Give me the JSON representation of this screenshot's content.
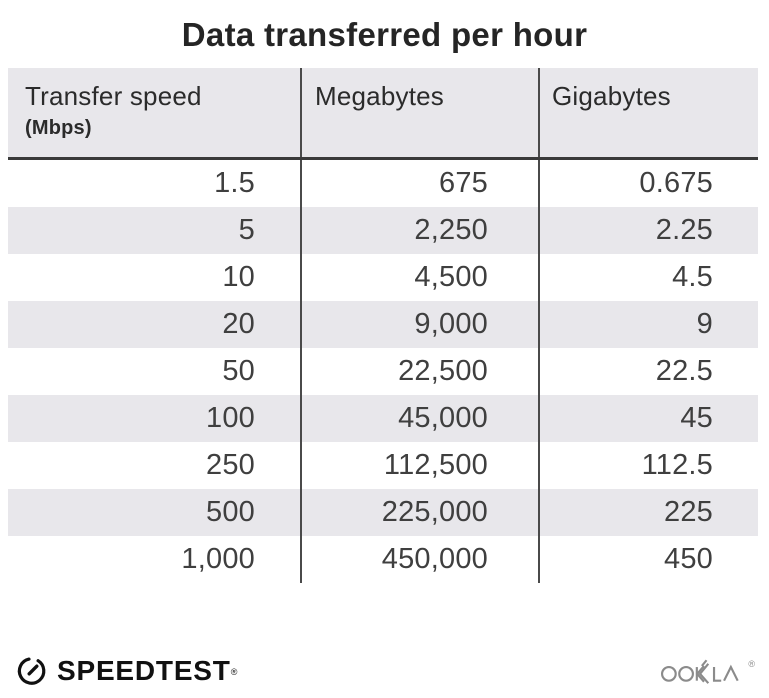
{
  "title": "Data transferred per hour",
  "table": {
    "columns": [
      {
        "label": "Transfer speed",
        "sublabel": "(Mbps)"
      },
      {
        "label": "Megabytes"
      },
      {
        "label": "Gigabytes"
      }
    ],
    "rows": [
      [
        "1.5",
        "675",
        "0.675"
      ],
      [
        "5",
        "2,250",
        "2.25"
      ],
      [
        "10",
        "4,500",
        "4.5"
      ],
      [
        "20",
        "9,000",
        "9"
      ],
      [
        "50",
        "22,500",
        "22.5"
      ],
      [
        "100",
        "45,000",
        "45"
      ],
      [
        "250",
        "112,500",
        "112.5"
      ],
      [
        "500",
        "225,000",
        "225"
      ],
      [
        "1,000",
        "450,000",
        "450"
      ]
    ]
  },
  "chart_data": {
    "type": "table",
    "title": "Data transferred per hour",
    "columns": [
      "Transfer speed (Mbps)",
      "Megabytes",
      "Gigabytes"
    ],
    "rows": [
      [
        1.5,
        675,
        0.675
      ],
      [
        5,
        2250,
        2.25
      ],
      [
        10,
        4500,
        4.5
      ],
      [
        20,
        9000,
        9
      ],
      [
        50,
        22500,
        22.5
      ],
      [
        100,
        45000,
        45
      ],
      [
        250,
        112500,
        112.5
      ],
      [
        500,
        225000,
        225
      ],
      [
        1000,
        450000,
        450
      ]
    ]
  },
  "footer": {
    "speedtest_label": "SPEEDTEST",
    "speedtest_trademark": "®",
    "ookla_label": "OOKLA",
    "ookla_trademark": "®"
  },
  "colors": {
    "header_bg": "#e8e7eb",
    "stripe_bg": "#e8e7eb",
    "column_divider": "#4a4a4a",
    "header_rule": "#3a3a3a",
    "title_text": "#252525",
    "cell_text": "#3f3f3f",
    "speedtest_black": "#111111",
    "ookla_gray": "#8b8b8b"
  }
}
